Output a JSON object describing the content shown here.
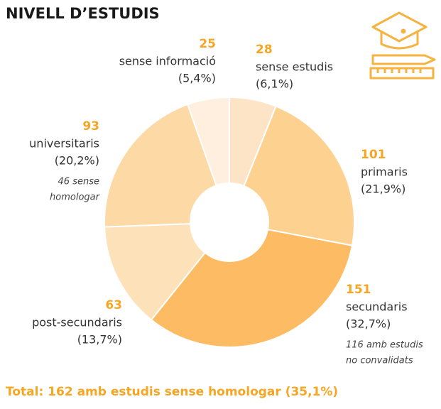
{
  "chart_data": {
    "type": "donut",
    "title": "NIVELL D’ESTUDIS",
    "categories": [
      "sense estudis",
      "primaris",
      "secundaris",
      "post-secundaris",
      "universitaris",
      "sense informació"
    ],
    "values": [
      28,
      101,
      151,
      63,
      93,
      25
    ],
    "share_labels": [
      "(6,1%)",
      "(21,9%)",
      "(32,7%)",
      "(13,7%)",
      "(20,2%)",
      "(5,4%)"
    ],
    "notes": [
      null,
      null,
      [
        "116 amb estudis",
        "no convalidats"
      ],
      null,
      [
        "46 sense",
        "homologar"
      ],
      null
    ],
    "colors": [
      "#fde4c6",
      "#fdd18f",
      "#fdbb63",
      "#fde1b9",
      "#fdd9a6",
      "#feefdf"
    ],
    "footer": "Total: 162 amb estudis sense homologar (35,1%)"
  }
}
